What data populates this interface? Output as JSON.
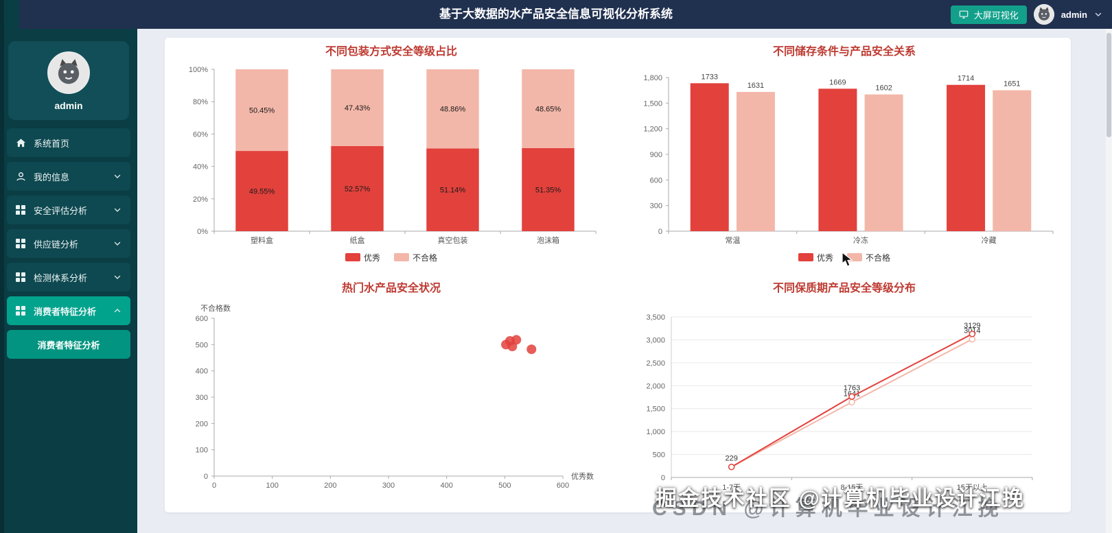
{
  "header": {
    "title": "基于大数据的水产品安全信息可视化分析系统",
    "screen_button_label": "大屏可视化",
    "username": "admin"
  },
  "sidebar": {
    "username": "admin",
    "items": [
      {
        "label": "系统首页"
      },
      {
        "label": "我的信息"
      },
      {
        "label": "安全评估分析"
      },
      {
        "label": "供应链分析"
      },
      {
        "label": "检测体系分析"
      },
      {
        "label": "消费者特征分析"
      }
    ],
    "submenu": [
      {
        "label": "消费者特征分析"
      }
    ]
  },
  "watermark": {
    "line1": "掘金技术社区 @计算机毕业设计江挽",
    "line2": "CSDN @计算机毕业设计江挽"
  },
  "colors": {
    "excellent": "#e2413c",
    "fail": "#f3b7a9",
    "accent": "#12a08b",
    "title": "#be3a31"
  },
  "chart_data": [
    {
      "type": "bar",
      "stacked": true,
      "title": "不同包装方式安全等级占比",
      "categories": [
        "塑料盒",
        "纸盒",
        "真空包装",
        "泡沫箱"
      ],
      "series": [
        {
          "name": "优秀",
          "color": "#e2413c",
          "values": [
            49.55,
            52.57,
            51.14,
            51.35
          ]
        },
        {
          "name": "不合格",
          "color": "#f3b7a9",
          "values": [
            50.45,
            47.43,
            48.86,
            48.65
          ]
        }
      ],
      "ylim": [
        0,
        100
      ],
      "ytick_step": 20,
      "ytick_suffix": "%",
      "legend": true,
      "legend_position": "bottom"
    },
    {
      "type": "bar",
      "stacked": false,
      "title": "不同储存条件与产品安全关系",
      "categories": [
        "常温",
        "冷冻",
        "冷藏"
      ],
      "series": [
        {
          "name": "优秀",
          "color": "#e2413c",
          "values": [
            1733,
            1669,
            1714
          ]
        },
        {
          "name": "不合格",
          "color": "#f3b7a9",
          "values": [
            1631,
            1602,
            1651
          ]
        }
      ],
      "ylim": [
        0,
        1800
      ],
      "ytick_step": 300,
      "legend": true,
      "legend_position": "bottom"
    },
    {
      "type": "scatter",
      "title": "热门水产品安全状况",
      "xlabel": "优秀数",
      "ylabel": "不合格数",
      "xlim": [
        0,
        600
      ],
      "ylim": [
        0,
        600
      ],
      "xtick_step": 100,
      "ytick_step": 100,
      "color": "#e2413c",
      "points": [
        [
          502,
          500
        ],
        [
          509,
          514
        ],
        [
          520,
          518
        ],
        [
          513,
          493
        ],
        [
          546,
          482
        ]
      ]
    },
    {
      "type": "line",
      "title": "不同保质期产品安全等级分布",
      "categories": [
        "1-7天",
        "8-15天",
        "15天以上"
      ],
      "series": [
        {
          "name": "优秀",
          "color": "#e2413c",
          "values": [
            229,
            1763,
            3129
          ],
          "labels": [
            "229",
            "1763",
            "3129"
          ]
        },
        {
          "name": "不合格",
          "color": "#f3b7a9",
          "values": [
            229,
            1641,
            3014
          ],
          "labels": [
            "",
            "1641",
            "3014"
          ]
        }
      ],
      "ylim": [
        0,
        3500
      ],
      "ytick_step": 500,
      "grid": true
    }
  ]
}
